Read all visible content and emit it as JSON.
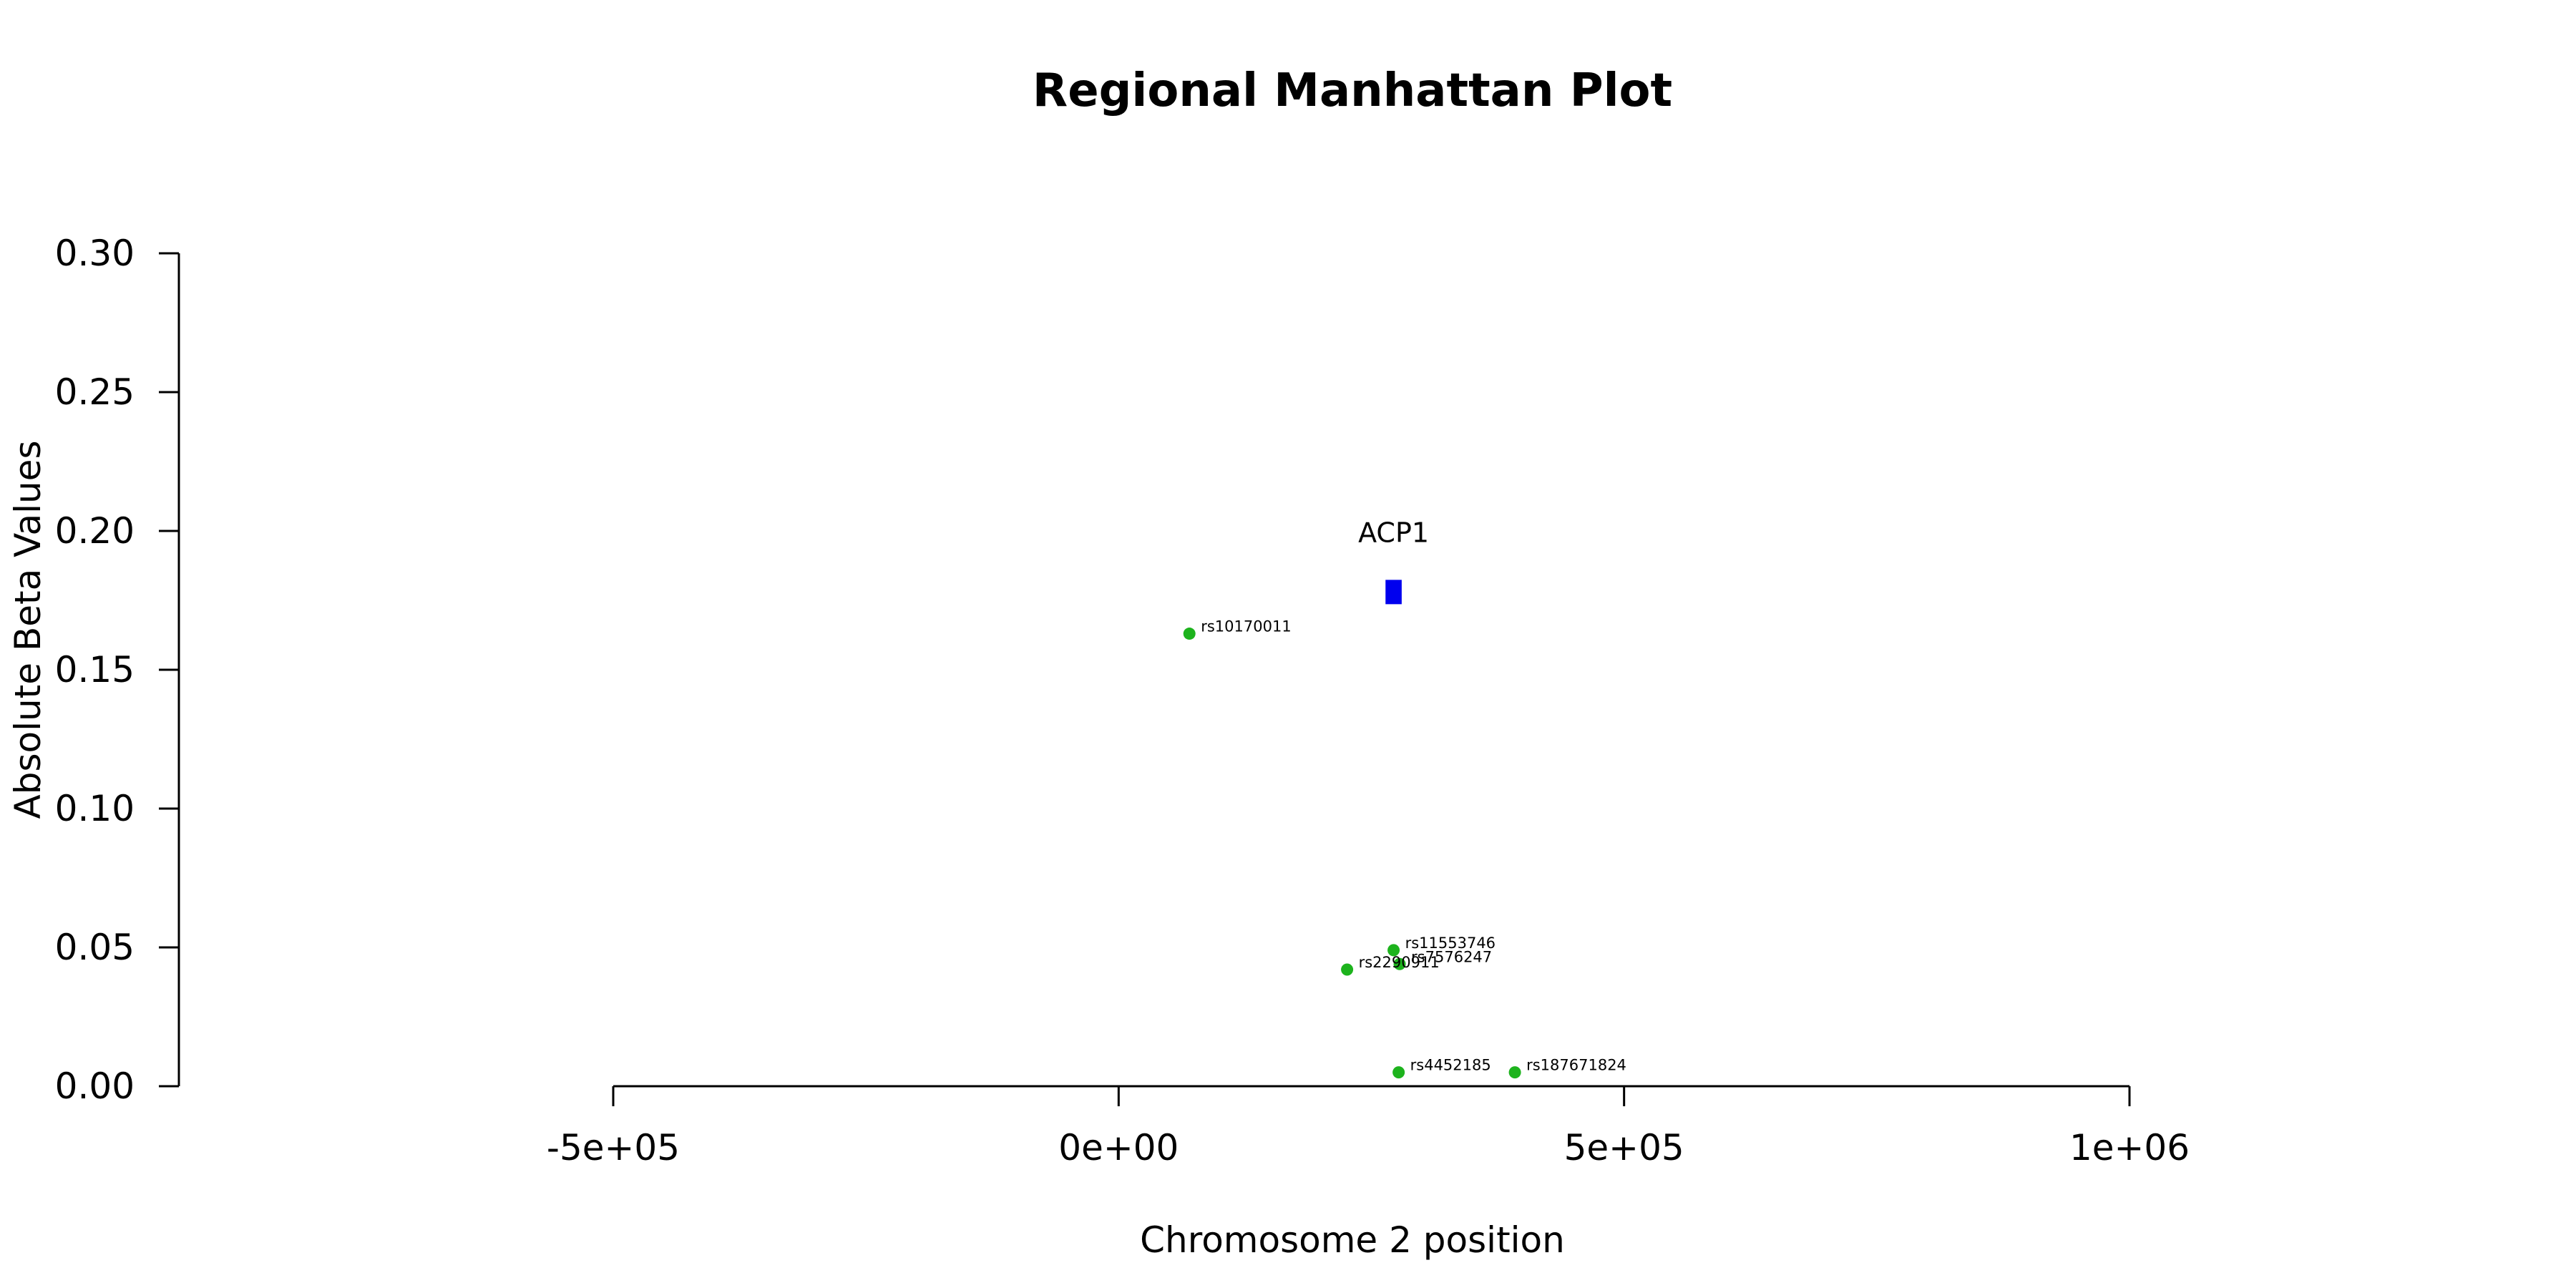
{
  "chart_data": {
    "type": "scatter",
    "title": "Regional Manhattan Plot",
    "xlabel": "Chromosome 2 position",
    "ylabel": "Absolute Beta Values",
    "xlim": [
      -500000,
      1000000
    ],
    "ylim": [
      0,
      0.3
    ],
    "x_ticks": [
      -500000,
      0,
      500000,
      1000000
    ],
    "x_tick_labels": [
      "-5e+05",
      "0e+00",
      "5e+05",
      "1e+06"
    ],
    "y_ticks": [
      0,
      0.05,
      0.1,
      0.15,
      0.2,
      0.25,
      0.3
    ],
    "y_tick_labels": [
      "0.00",
      "0.05",
      "0.10",
      "0.15",
      "0.20",
      "0.25",
      "0.30"
    ],
    "grid": false,
    "snp_color": "#1db31d",
    "gene_color": "#0000ee",
    "snps": [
      {
        "label": "rs10170011",
        "x": 70000,
        "y": 0.163
      },
      {
        "label": "rs11553746",
        "x": 272000,
        "y": 0.049
      },
      {
        "label": "rs7576247",
        "x": 278000,
        "y": 0.044
      },
      {
        "label": "rs2290911",
        "x": 226000,
        "y": 0.042
      },
      {
        "label": "rs4452185",
        "x": 277000,
        "y": 0.005
      },
      {
        "label": "rs187671824",
        "x": 392000,
        "y": 0.005
      }
    ],
    "genes": [
      {
        "label": "ACP1",
        "start": 264000,
        "end": 280000,
        "y": 0.178
      }
    ]
  }
}
